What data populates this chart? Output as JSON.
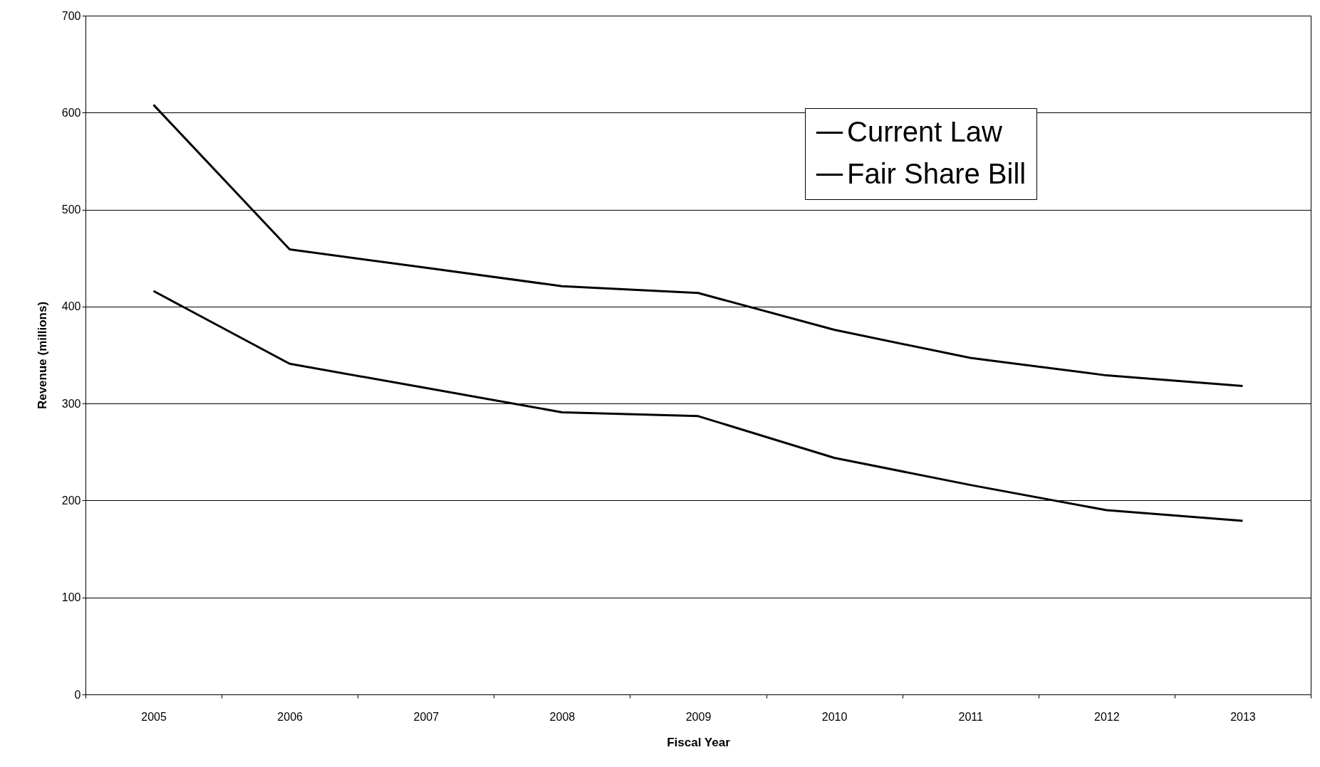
{
  "chart_data": {
    "type": "line",
    "xlabel": "Fiscal Year",
    "ylabel": "Revenue (millions)",
    "categories": [
      "2005",
      "2006",
      "2007",
      "2008",
      "2009",
      "2010",
      "2011",
      "2012",
      "2013"
    ],
    "series": [
      {
        "name": "Current Law",
        "color": "#000000",
        "values": [
          608,
          459,
          440,
          421,
          414,
          376,
          347,
          329,
          318
        ]
      },
      {
        "name": "Fair Share Bill",
        "color": "#000000",
        "values": [
          416,
          341,
          316,
          291,
          287,
          244,
          216,
          190,
          179
        ]
      }
    ],
    "ylim": [
      0,
      700
    ],
    "yticks": [
      0,
      100,
      200,
      300,
      400,
      500,
      600,
      700
    ],
    "grid": "y",
    "legend": "top right",
    "marker": "none",
    "line_style": "solid"
  }
}
